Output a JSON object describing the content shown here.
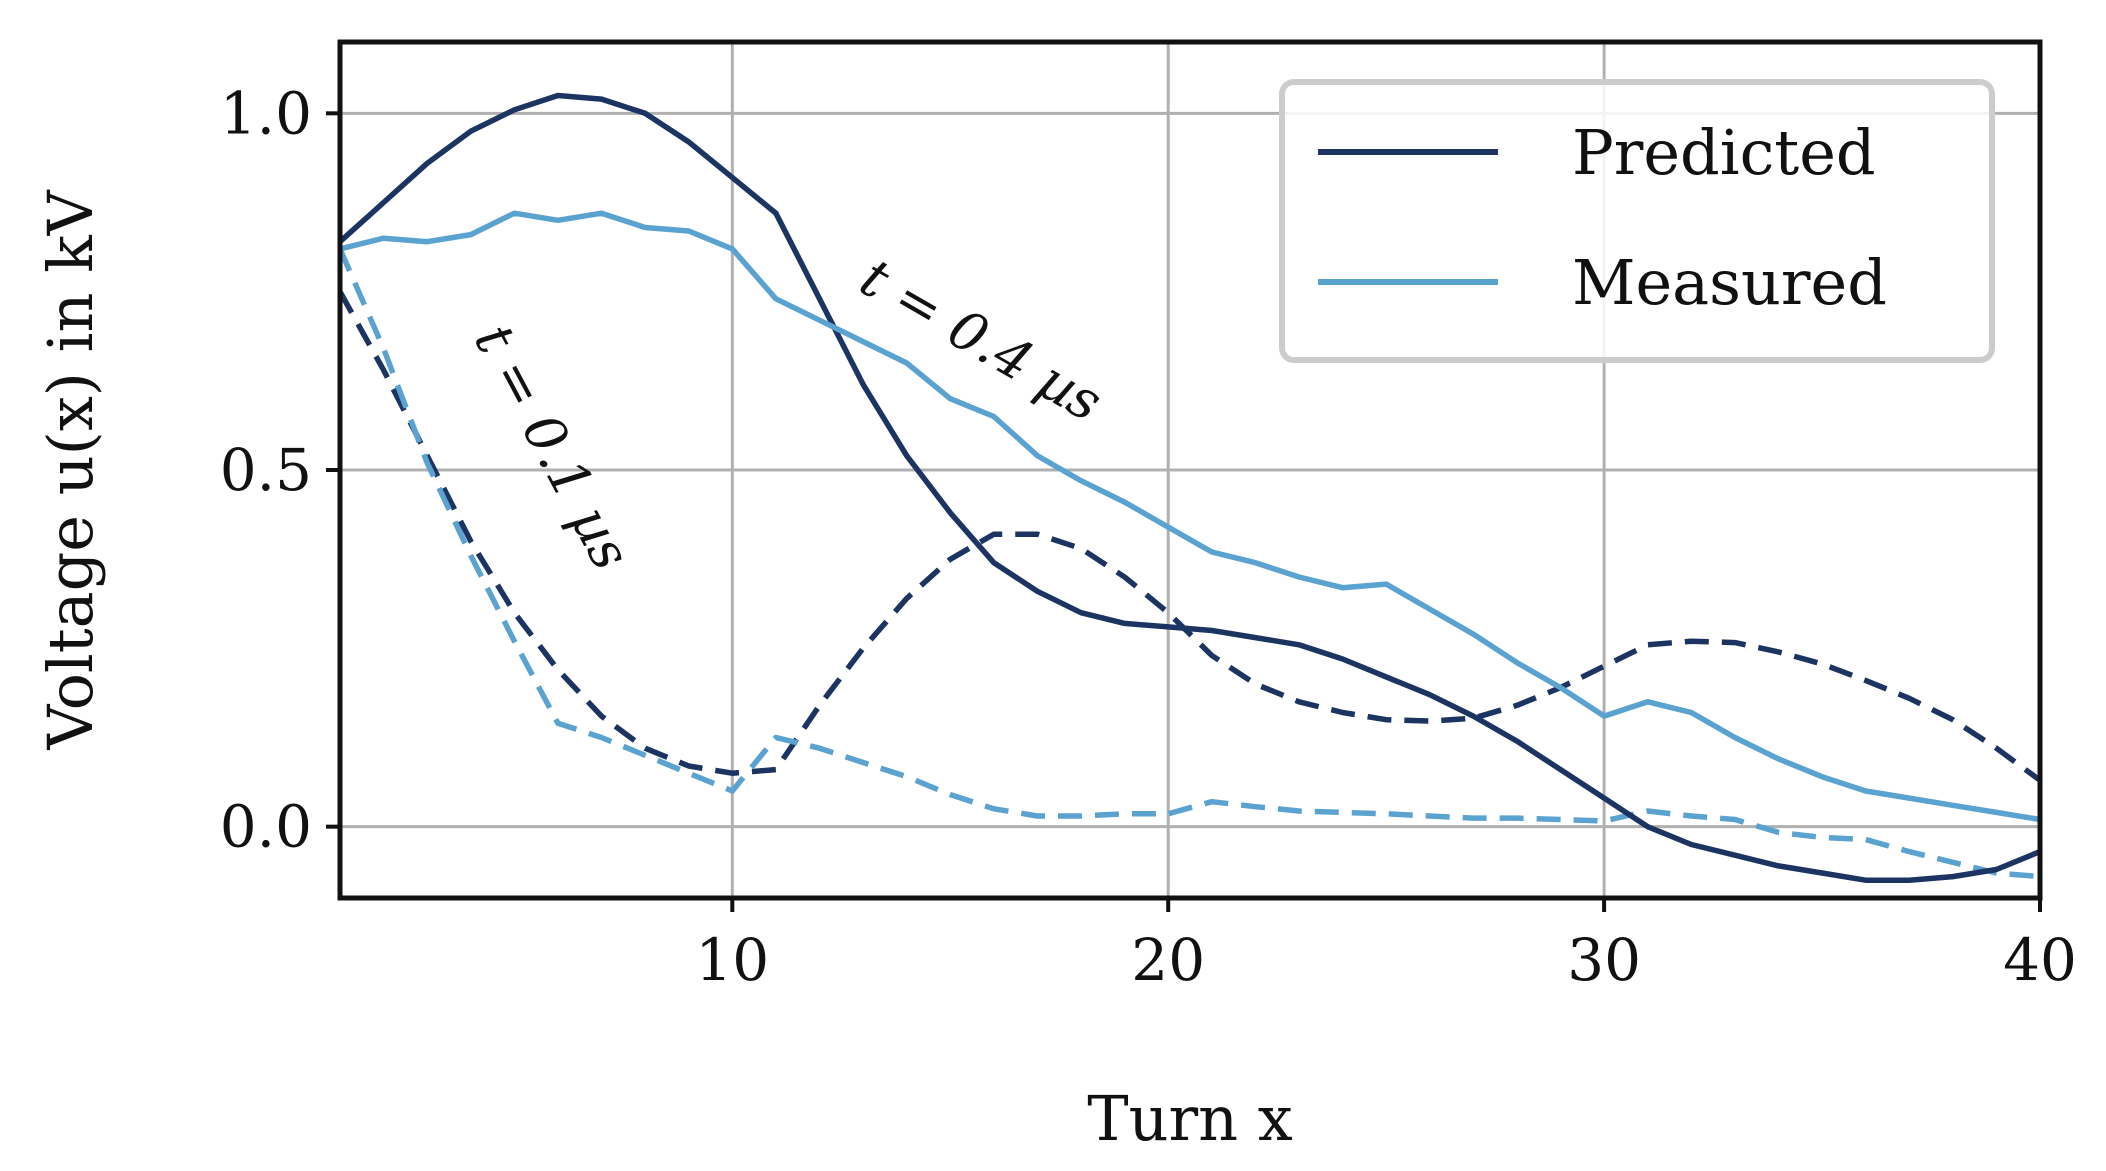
{
  "chart_data": {
    "type": "line",
    "title": "",
    "xlabel": "Turn x",
    "ylabel": "Voltage u(x) in kV",
    "xlim": [
      1,
      40
    ],
    "ylim": [
      -0.1,
      1.1
    ],
    "xticks": [
      10,
      20,
      30,
      40
    ],
    "xtick_labels": [
      "10",
      "20",
      "30",
      "40"
    ],
    "yticks": [
      0.0,
      0.5,
      1.0
    ],
    "ytick_labels": [
      "0.0",
      "0.5",
      "1.0"
    ],
    "grid": true,
    "legend": {
      "placement": "top-right",
      "entries": [
        {
          "label": "Predicted",
          "color": "#1c3461"
        },
        {
          "label": "Measured",
          "color": "#5aa2cf"
        }
      ]
    },
    "annotations": [
      {
        "text": "t = 0.1 µs",
        "x": 5.5,
        "y": 0.52,
        "angle": 62
      },
      {
        "text": "t = 0.4 µs",
        "x": 15.5,
        "y": 0.66,
        "angle": 30
      }
    ],
    "series": [
      {
        "name": "Predicted, t = 0.4 µs",
        "style": "solid",
        "color": "#1c3461",
        "x": [
          1,
          2,
          3,
          4,
          5,
          6,
          7,
          8,
          9,
          10,
          11,
          12,
          13,
          14,
          15,
          16,
          17,
          18,
          19,
          20,
          21,
          22,
          23,
          24,
          25,
          26,
          27,
          28,
          29,
          30,
          31,
          32,
          33,
          34,
          35,
          36,
          37,
          38,
          39,
          40
        ],
        "y": [
          0.82,
          0.875,
          0.93,
          0.975,
          1.005,
          1.025,
          1.02,
          1.0,
          0.96,
          0.91,
          0.86,
          0.74,
          0.62,
          0.52,
          0.44,
          0.37,
          0.33,
          0.3,
          0.285,
          0.28,
          0.275,
          0.265,
          0.255,
          0.235,
          0.21,
          0.185,
          0.155,
          0.12,
          0.08,
          0.04,
          0.0,
          -0.025,
          -0.04,
          -0.055,
          -0.065,
          -0.075,
          -0.075,
          -0.07,
          -0.06,
          -0.035
        ]
      },
      {
        "name": "Measured, t = 0.4 µs",
        "style": "solid",
        "color": "#5aa2cf",
        "x": [
          1,
          2,
          3,
          4,
          5,
          6,
          7,
          8,
          9,
          10,
          11,
          12,
          13,
          14,
          15,
          16,
          17,
          18,
          19,
          20,
          21,
          22,
          23,
          24,
          25,
          26,
          27,
          28,
          29,
          30,
          31,
          32,
          33,
          34,
          35,
          36,
          37,
          38,
          39,
          40
        ],
        "y": [
          0.81,
          0.825,
          0.82,
          0.83,
          0.86,
          0.85,
          0.86,
          0.84,
          0.835,
          0.81,
          0.74,
          0.71,
          0.68,
          0.65,
          0.6,
          0.575,
          0.52,
          0.485,
          0.455,
          0.42,
          0.385,
          0.37,
          0.35,
          0.335,
          0.34,
          0.305,
          0.27,
          0.23,
          0.195,
          0.155,
          0.175,
          0.16,
          0.125,
          0.095,
          0.07,
          0.05,
          0.04,
          0.03,
          0.02,
          0.01
        ]
      },
      {
        "name": "Predicted, t = 0.1 µs",
        "style": "dashed",
        "color": "#1c3461",
        "x": [
          1,
          2,
          3,
          4,
          5,
          6,
          7,
          8,
          9,
          10,
          11,
          12,
          13,
          14,
          15,
          16,
          17,
          18,
          19,
          20,
          21,
          22,
          23,
          24,
          25,
          26,
          27,
          28,
          29,
          30,
          31,
          32,
          33,
          34,
          35,
          36,
          37,
          38,
          39,
          40
        ],
        "y": [
          0.75,
          0.64,
          0.52,
          0.4,
          0.3,
          0.22,
          0.155,
          0.11,
          0.085,
          0.075,
          0.08,
          0.17,
          0.25,
          0.32,
          0.375,
          0.41,
          0.41,
          0.39,
          0.35,
          0.3,
          0.24,
          0.2,
          0.175,
          0.16,
          0.15,
          0.148,
          0.152,
          0.17,
          0.195,
          0.225,
          0.255,
          0.26,
          0.258,
          0.245,
          0.228,
          0.205,
          0.18,
          0.15,
          0.11,
          0.065
        ]
      },
      {
        "name": "Measured, t = 0.1 µs",
        "style": "dashed",
        "color": "#5aa2cf",
        "x": [
          1,
          2,
          3,
          4,
          5,
          6,
          7,
          8,
          9,
          10,
          11,
          12,
          13,
          14,
          15,
          16,
          17,
          18,
          19,
          20,
          21,
          22,
          23,
          24,
          25,
          26,
          27,
          28,
          29,
          30,
          31,
          32,
          33,
          34,
          35,
          36,
          37,
          38,
          39,
          40
        ],
        "y": [
          0.81,
          0.67,
          0.51,
          0.38,
          0.26,
          0.145,
          0.125,
          0.1,
          0.075,
          0.05,
          0.125,
          0.11,
          0.09,
          0.07,
          0.045,
          0.025,
          0.015,
          0.015,
          0.018,
          0.018,
          0.035,
          0.028,
          0.022,
          0.02,
          0.018,
          0.015,
          0.012,
          0.012,
          0.01,
          0.008,
          0.022,
          0.015,
          0.01,
          -0.008,
          -0.015,
          -0.018,
          -0.035,
          -0.05,
          -0.065,
          -0.07
        ]
      }
    ]
  }
}
